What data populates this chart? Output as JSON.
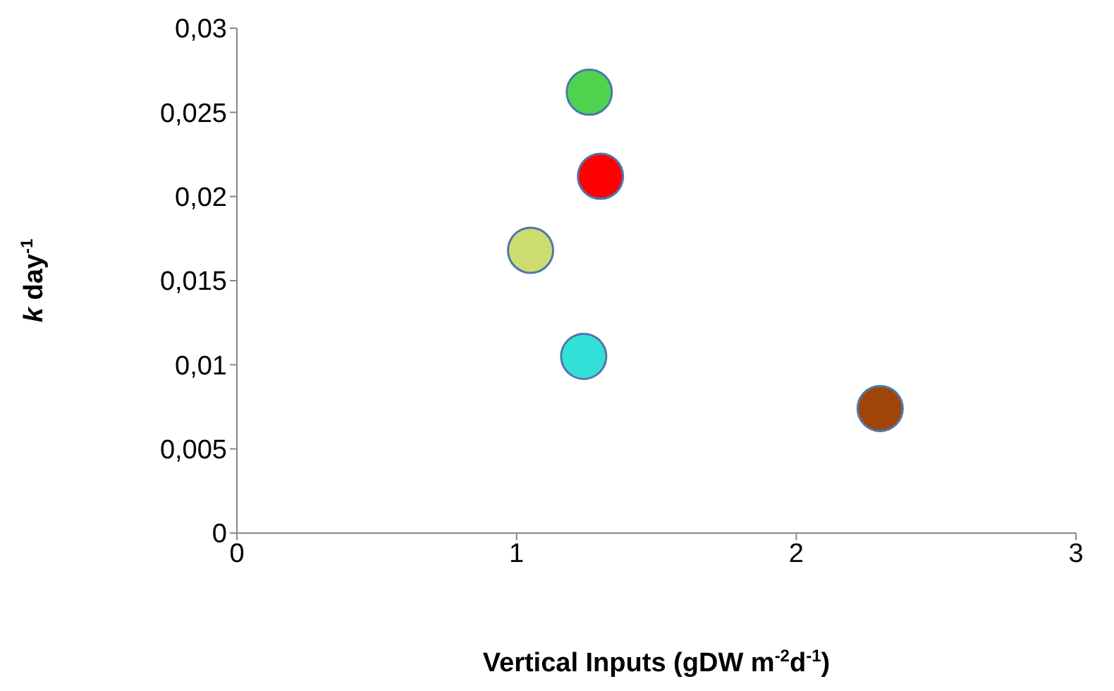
{
  "chart_data": {
    "type": "scatter",
    "xlabel": "Vertical Inputs (gDW m$^{-2}$d$^{-1}$)",
    "ylabel": "k day$^{-1}$",
    "x": [
      1.26,
      1.3,
      1.05,
      1.24,
      2.3
    ],
    "values": [
      0.0262,
      0.0212,
      0.0168,
      0.0105,
      0.0074
    ],
    "colors": [
      "#4fd34f",
      "#ff0000",
      "#cddc6e",
      "#33e0d8",
      "#a0450a"
    ],
    "marker": "circle",
    "xlim": [
      0,
      3
    ],
    "xticks": [
      0,
      1,
      2,
      3
    ],
    "ylim": [
      0,
      0.03
    ],
    "yticks": [
      0,
      {
        "value": 0.005,
        "label": "0,005"
      },
      {
        "value": 0.01,
        "label": "0,01"
      },
      {
        "value": 0.015,
        "label": "0,015"
      },
      {
        "value": 0.02,
        "label": "0,02"
      },
      {
        "value": 0.025,
        "label": "0,025"
      },
      {
        "value": 0.03,
        "label": "0,03"
      }
    ],
    "grid": false,
    "legend": false
  }
}
